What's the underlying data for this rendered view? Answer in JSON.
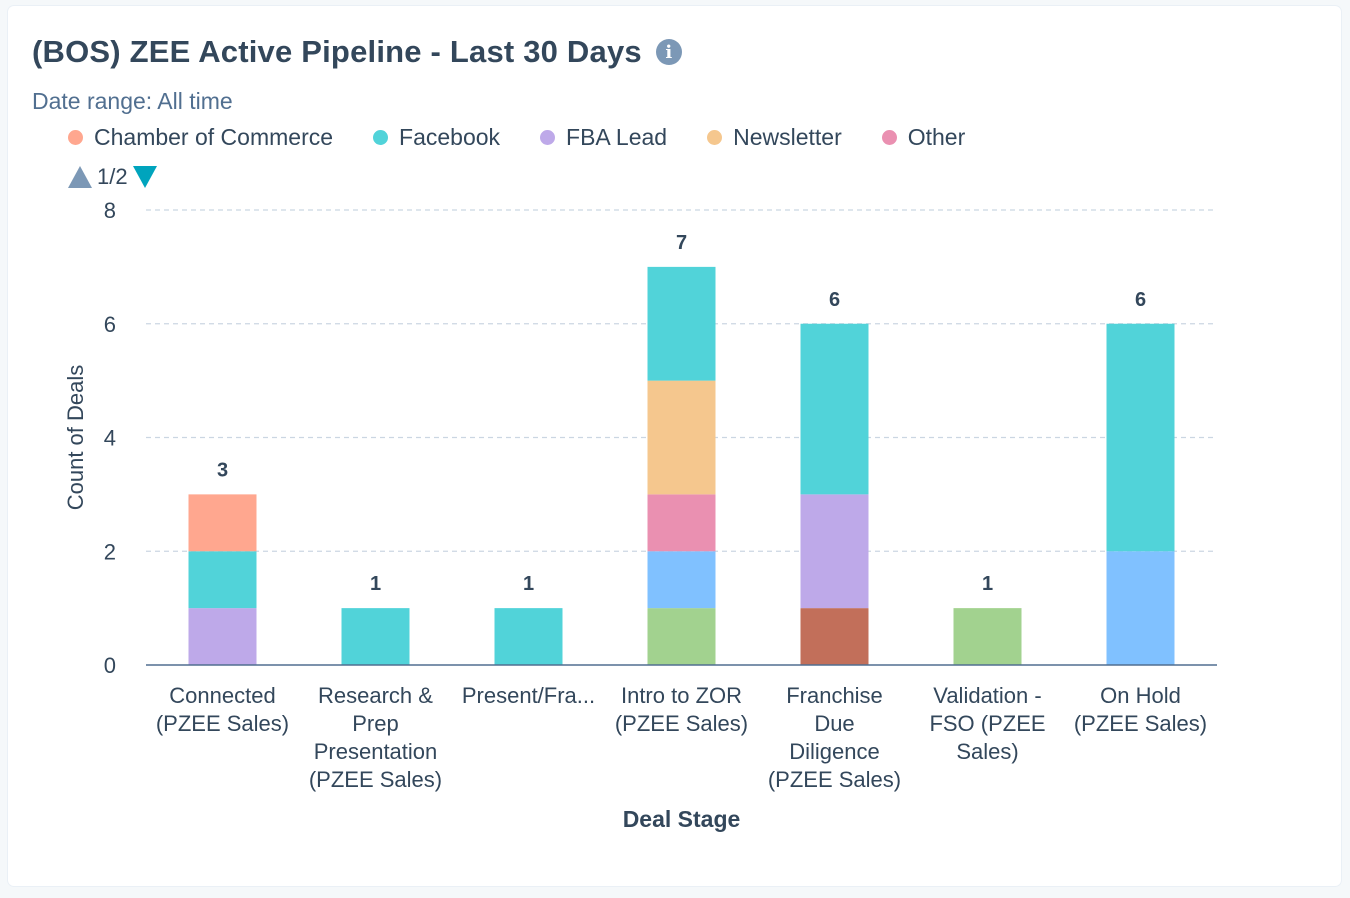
{
  "title": "(BOS) ZEE Active Pipeline - Last 30 Days",
  "info_icon": "info-icon",
  "date_range": "Date range: All time",
  "legend": [
    {
      "name": "Chamber of Commerce",
      "color": "#ffa78f"
    },
    {
      "name": "Facebook",
      "color": "#51d3d9"
    },
    {
      "name": "FBA Lead",
      "color": "#bea9e9"
    },
    {
      "name": "Newsletter",
      "color": "#f5c78e"
    },
    {
      "name": "Other",
      "color": "#ea90b1"
    }
  ],
  "pager": {
    "text": "1/2",
    "prev_icon": "triangle-up-icon",
    "next_icon": "triangle-down-icon"
  },
  "chart_data": {
    "type": "bar",
    "stacked": true,
    "xlabel": "Deal Stage",
    "ylabel": "Count of Deals",
    "ylim": [
      0,
      8
    ],
    "yticks": [
      0,
      2,
      4,
      6,
      8
    ],
    "grid": true,
    "legend_position": "top-left",
    "categories": [
      [
        "Connected",
        "(PZEE Sales)"
      ],
      [
        "Research &",
        "Prep",
        "Presentation",
        "(PZEE Sales)"
      ],
      [
        "Present/Fra..."
      ],
      [
        "Intro to ZOR",
        "(PZEE Sales)"
      ],
      [
        "Franchise",
        "Due",
        "Diligence",
        "(PZEE Sales)"
      ],
      [
        "Validation -",
        "FSO (PZEE",
        "Sales)"
      ],
      [
        "On Hold",
        "(PZEE Sales)"
      ]
    ],
    "totals": [
      3,
      1,
      1,
      7,
      6,
      1,
      6
    ],
    "series": [
      {
        "color": "#c26f5a",
        "values": [
          0,
          0,
          0,
          0,
          1,
          0,
          0
        ]
      },
      {
        "color": "#a2d28f",
        "values": [
          0,
          0,
          0,
          1,
          0,
          1,
          0
        ]
      },
      {
        "color": "#80c1ff",
        "values": [
          0,
          0,
          0,
          1,
          0,
          0,
          2
        ]
      },
      {
        "name": "FBA Lead",
        "color": "#bea9e9",
        "values": [
          1,
          0,
          0,
          0,
          2,
          0,
          0
        ]
      },
      {
        "name": "Other",
        "color": "#ea90b1",
        "values": [
          0,
          0,
          0,
          1,
          0,
          0,
          0
        ]
      },
      {
        "name": "Newsletter",
        "color": "#f5c78e",
        "values": [
          0,
          0,
          0,
          2,
          0,
          0,
          0
        ]
      },
      {
        "name": "Facebook",
        "color": "#51d3d9",
        "values": [
          1,
          1,
          1,
          2,
          3,
          0,
          4
        ]
      },
      {
        "name": "Chamber of Commerce",
        "color": "#ffa78f",
        "values": [
          1,
          0,
          0,
          0,
          0,
          0,
          0
        ]
      }
    ]
  }
}
